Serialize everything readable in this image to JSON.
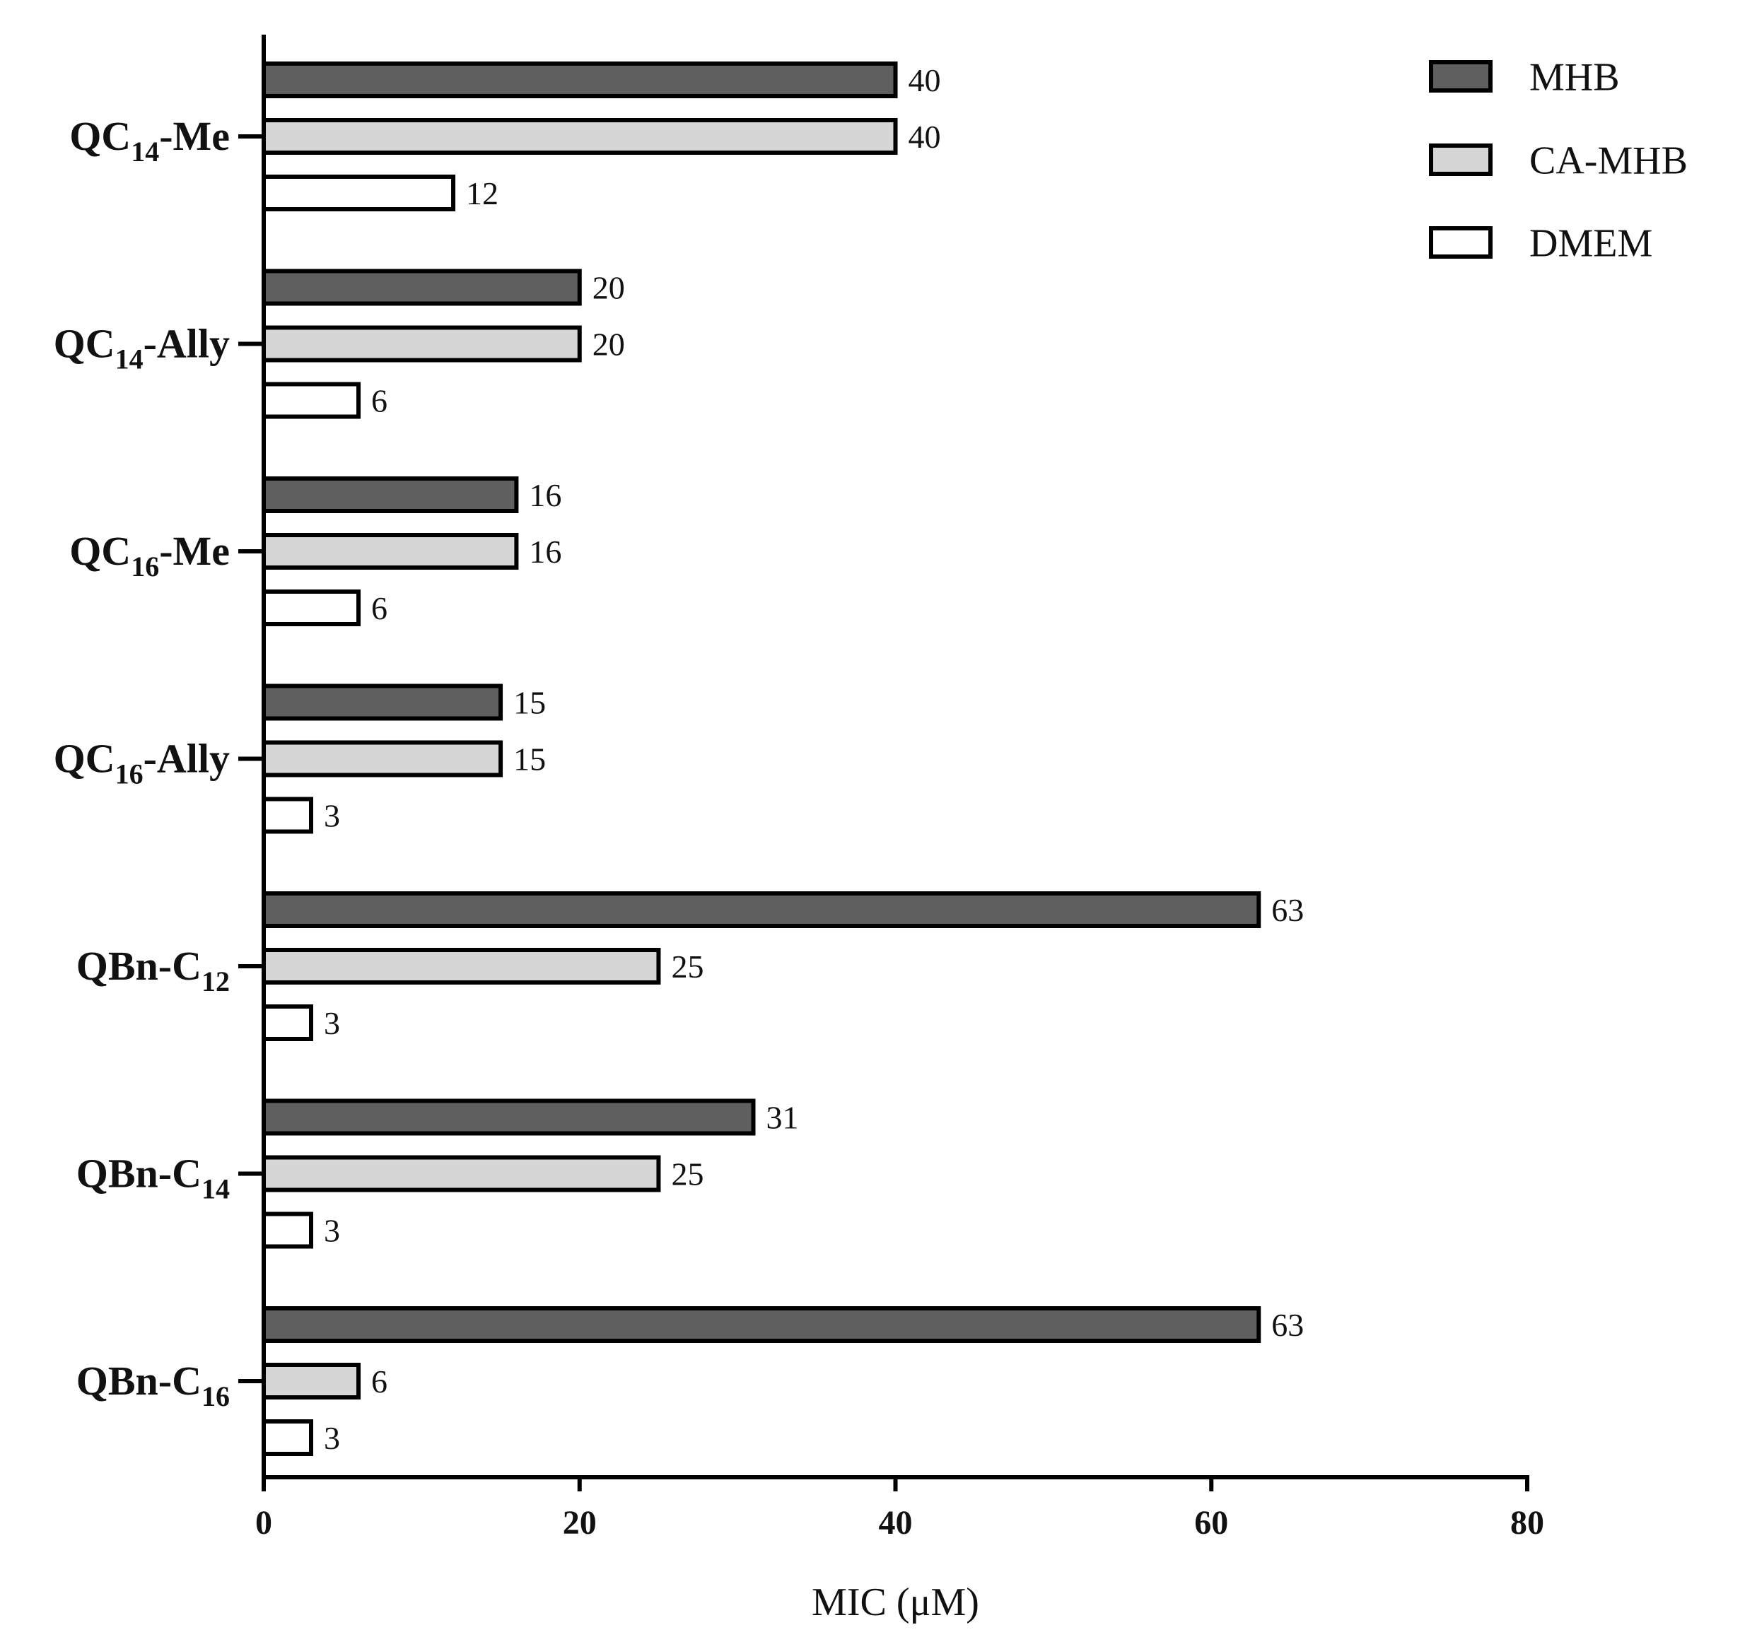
{
  "chart_data": {
    "type": "bar",
    "orientation": "horizontal",
    "categories": [
      {
        "base": "QC",
        "sub": "14",
        "suffix": "-Me"
      },
      {
        "base": "QC",
        "sub": "14",
        "suffix": "-Ally"
      },
      {
        "base": "QC",
        "sub": "16",
        "suffix": "-Me"
      },
      {
        "base": "QC",
        "sub": "16",
        "suffix": "-Ally"
      },
      {
        "base": "QBn-C",
        "sub": "12",
        "suffix": ""
      },
      {
        "base": "QBn-C",
        "sub": "14",
        "suffix": ""
      },
      {
        "base": "QBn-C",
        "sub": "16",
        "suffix": ""
      }
    ],
    "series": [
      {
        "name": "MHB",
        "color": "#5f5f5f",
        "values": [
          40,
          20,
          16,
          15,
          63,
          31,
          63
        ]
      },
      {
        "name": "CA-MHB",
        "color": "#d6d6d6",
        "values": [
          40,
          20,
          16,
          15,
          25,
          25,
          6
        ]
      },
      {
        "name": "DMEM",
        "color": "#ffffff",
        "values": [
          12,
          6,
          6,
          3,
          3,
          3,
          3
        ]
      }
    ],
    "data_labels": [
      [
        "40",
        "40",
        "12"
      ],
      [
        "20",
        "20",
        "6"
      ],
      [
        "16",
        "16",
        "6"
      ],
      [
        "15",
        "15",
        "3"
      ],
      [
        "63",
        "25",
        "3"
      ],
      [
        "31",
        "25",
        "3"
      ],
      [
        "63",
        "6",
        "3"
      ]
    ],
    "xlabel": "MIC (μM)",
    "ylabel": "",
    "title": "",
    "xlim": [
      0,
      80
    ],
    "xticks": [
      0,
      20,
      40,
      60,
      80
    ],
    "xtick_labels": [
      "0",
      "20",
      "40",
      "60",
      "80"
    ],
    "grid": false,
    "legend_position": "top-right",
    "bar_outline_color": "#000000"
  }
}
